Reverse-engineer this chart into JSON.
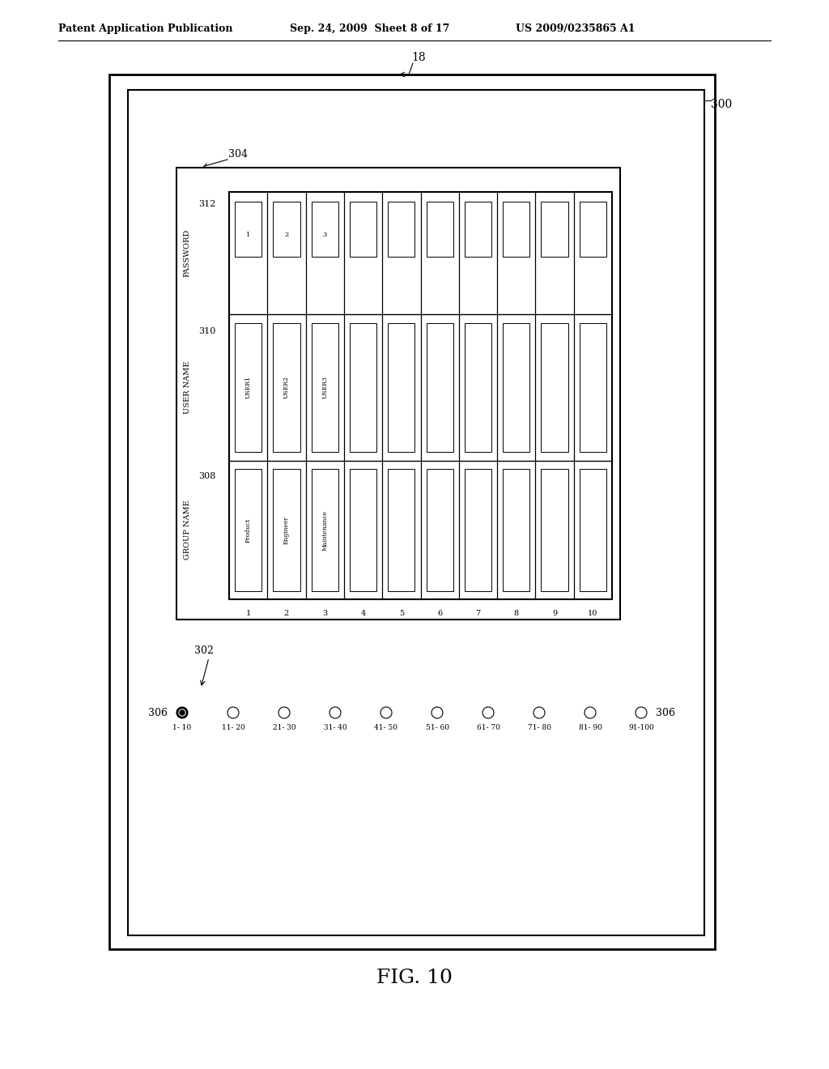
{
  "bg_color": "#ffffff",
  "header_text": "Patent Application Publication",
  "header_date": "Sep. 24, 2009  Sheet 8 of 17",
  "header_patent": "US 2009/0235865 A1",
  "fig_label": "FIG. 10",
  "label_18": "18",
  "label_300": "300",
  "label_302": "302",
  "label_304": "304",
  "label_306a": "306",
  "label_306b": "306",
  "label_308": "308",
  "label_310": "310",
  "label_312": "312",
  "group_name_label": "GROUP NAME",
  "user_name_label": "USER NAME",
  "password_label": "PASSWORD",
  "group_names": [
    "Product",
    "Engineer",
    "Maintenance",
    "",
    "",
    "",
    "",
    "",
    "",
    ""
  ],
  "user_names": [
    "USER1",
    "USER2",
    "USER3",
    "",
    "",
    "",
    "",
    "",
    "",
    ""
  ],
  "password_nums": [
    "1",
    "2",
    "3",
    "",
    "",
    "",
    "",
    "",
    "",
    ""
  ],
  "col_nums": [
    "1",
    "2",
    "3",
    "4",
    "5",
    "6",
    "7",
    "8",
    "9",
    "10"
  ],
  "radio_labels": [
    "1- 10",
    "11- 20",
    "21- 30",
    "31- 40",
    "41- 50",
    "51- 60",
    "61- 70",
    "71- 80",
    "81- 90",
    "91-100"
  ]
}
